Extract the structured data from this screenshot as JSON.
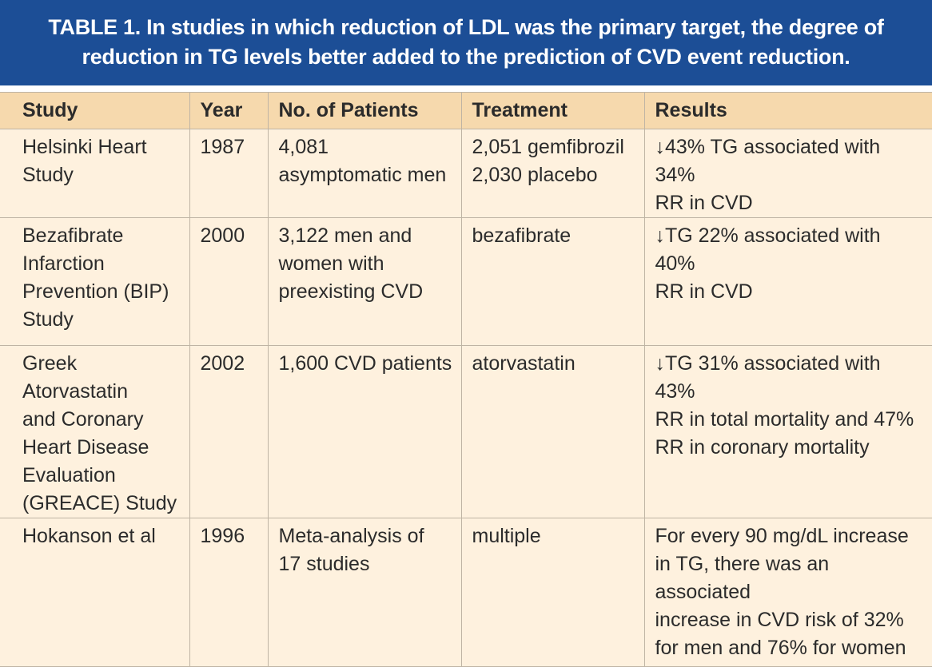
{
  "title": {
    "line1": "TABLE 1. In studies in which reduction of LDL was the primary target, the degree of",
    "line2": "reduction in TG levels better added to the prediction of CVD event reduction."
  },
  "colors": {
    "title_bg": "#1c4e96",
    "header_bg": "#f6d9ad",
    "row_bg": "#fef1de",
    "rule": "#bfb4a4"
  },
  "table": {
    "headers": [
      "Study",
      "Year",
      "No. of Patients",
      "Treatment",
      "Results"
    ],
    "rows": [
      {
        "study": [
          "Helsinki Heart",
          "Study"
        ],
        "year": "1987",
        "patients": [
          "4,081",
          "asymptomatic men"
        ],
        "treatment": [
          "2,051 gemfibrozil",
          "2,030 placebo"
        ],
        "results": [
          "↓43% TG associated with 34%",
          "RR in CVD"
        ]
      },
      {
        "study": [
          "Bezafibrate",
          "Infarction",
          "Prevention (BIP)",
          "Study"
        ],
        "year": "2000",
        "patients": [
          "3,122 men and",
          "women with",
          "preexisting CVD"
        ],
        "treatment": [
          "bezafibrate"
        ],
        "results": [
          "↓TG 22% associated with 40%",
          "RR in CVD"
        ]
      },
      {
        "study": [
          "Greek Atorvastatin",
          "and Coronary",
          "Heart Disease",
          "Evaluation",
          "(GREACE) Study"
        ],
        "year": "2002",
        "patients": [
          "1,600 CVD patients"
        ],
        "treatment": [
          "atorvastatin"
        ],
        "results": [
          "↓TG 31% associated with 43%",
          "RR in total mortality and 47%",
          "RR in coronary mortality"
        ]
      },
      {
        "study": [
          "Hokanson et al"
        ],
        "year": "1996",
        "patients": [
          "Meta-analysis of",
          "17 studies"
        ],
        "treatment": [
          "multiple"
        ],
        "results": [
          "For every 90 mg/dL increase",
          "in TG, there was an associated",
          "increase in CVD risk of 32%",
          "for men and 76% for women"
        ]
      }
    ]
  }
}
